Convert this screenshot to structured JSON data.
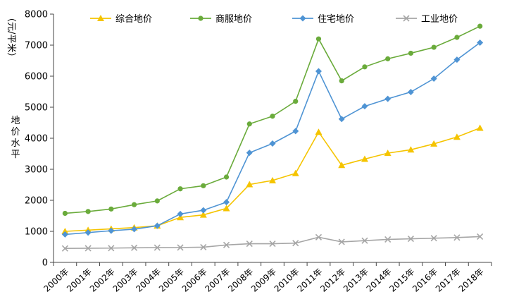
{
  "chart_data": {
    "type": "line",
    "title": "",
    "ylabel": "地价水平",
    "yunit": "（元/平米）",
    "xlabel": "",
    "ylim": [
      0,
      8000
    ],
    "yticks": [
      0,
      1000,
      2000,
      3000,
      4000,
      5000,
      6000,
      7000,
      8000
    ],
    "grid": false,
    "legend_position": "top",
    "categories": [
      "2000年",
      "2001年",
      "2002年",
      "2003年",
      "2004年",
      "2005年",
      "2006年",
      "2007年",
      "2008年",
      "2009年",
      "2010年",
      "2011年",
      "2012年",
      "2013年",
      "2014年",
      "2015年",
      "2016年",
      "2017年",
      "2018年"
    ],
    "series": [
      {
        "name": "综合地价",
        "color": "#f5c400",
        "marker": "triangle",
        "values": [
          1000,
          1040,
          1080,
          1120,
          1180,
          1450,
          1530,
          1740,
          2510,
          2640,
          2870,
          4200,
          3130,
          3330,
          3520,
          3630,
          3820,
          4040,
          4330
        ]
      },
      {
        "name": "商服地价",
        "color": "#6aab3b",
        "marker": "circle",
        "values": [
          1580,
          1640,
          1720,
          1860,
          1980,
          2370,
          2470,
          2750,
          4460,
          4710,
          5190,
          7200,
          5850,
          6300,
          6560,
          6740,
          6930,
          7250,
          7610
        ]
      },
      {
        "name": "住宅地价",
        "color": "#4f94d4",
        "marker": "diamond",
        "values": [
          900,
          960,
          1020,
          1070,
          1180,
          1560,
          1680,
          1940,
          3530,
          3830,
          4230,
          6160,
          4620,
          5030,
          5270,
          5490,
          5920,
          6530,
          7080
        ]
      },
      {
        "name": "工业地价",
        "color": "#a6a6a6",
        "marker": "x",
        "values": [
          450,
          455,
          460,
          470,
          475,
          480,
          490,
          560,
          600,
          600,
          620,
          810,
          660,
          700,
          740,
          760,
          780,
          800,
          830
        ]
      }
    ]
  }
}
